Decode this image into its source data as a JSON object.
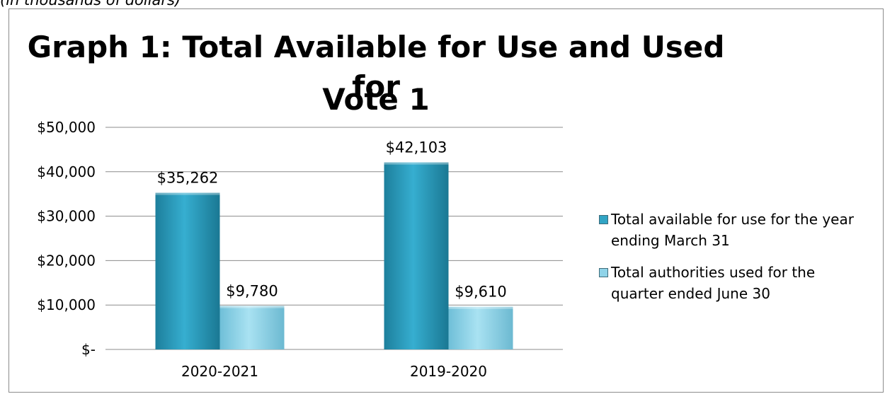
{
  "header_note": "(in thousands of dollars)",
  "chart_data": {
    "type": "bar",
    "title_lines": [
      "Graph 1: Total Available for Use and Used for",
      "Vote 1"
    ],
    "categories": [
      "2020-2021",
      "2019-2020"
    ],
    "series": [
      {
        "name": "Total available for use for the year ending March 31",
        "legend_lines": [
          "Total available for use for the year",
          "ending March 31"
        ],
        "values": [
          35262,
          42103
        ],
        "labels": [
          "$35,262",
          "$42,103"
        ],
        "color": "#31a4c4"
      },
      {
        "name": "Total authorities used for the quarter ended June 30",
        "legend_lines": [
          "Total authorities used for the",
          "quarter ended June 30"
        ],
        "values": [
          9780,
          9610
        ],
        "labels": [
          "$9,780",
          "$9,610"
        ],
        "color": "#8fd3e8"
      }
    ],
    "ylim": [
      0,
      50000
    ],
    "yticks": [
      0,
      10000,
      20000,
      30000,
      40000,
      50000
    ],
    "ytick_labels": [
      "$-",
      "$10,000",
      "$20,000",
      "$30,000",
      "$40,000",
      "$50,000"
    ],
    "grid": true,
    "legend_position": "right"
  }
}
